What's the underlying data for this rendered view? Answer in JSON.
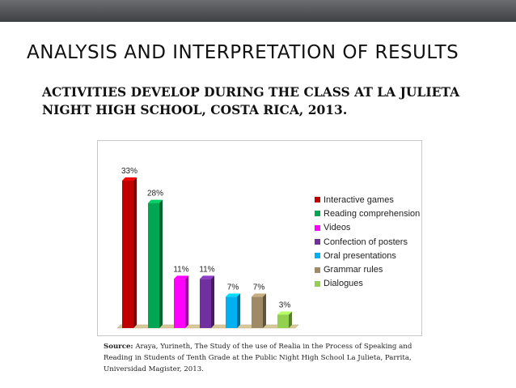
{
  "slide": {
    "title": "ANALYSIS AND INTERPRETATION OF RESULTS",
    "subtitle": "ACTIVITIES DEVELOP DURING THE CLASS AT LA JULIETA NIGHT HIGH SCHOOL, COSTA RICA, 2013.",
    "source_label": "Source:",
    "source_text": " Araya, Yurineth, The Study of the use of Realia in the Process of Speaking and Reading in Students of Tenth Grade at the Public Night High School La Julieta, Parrita, Universidad Magister, 2013."
  },
  "chart_data": {
    "type": "bar",
    "style": "3d-columns",
    "categories": [
      "Interactive games",
      "Reading comprehension",
      "Videos",
      "Confection of posters",
      "Oral presentations",
      "Grammar rules",
      "Dialogues"
    ],
    "values": [
      33,
      28,
      11,
      11,
      7,
      7,
      3
    ],
    "value_labels": [
      "33%",
      "28%",
      "11%",
      "11%",
      "7%",
      "7%",
      "3%"
    ],
    "colors": [
      "#c00000",
      "#00a651",
      "#ff00ff",
      "#7030a0",
      "#00b0f0",
      "#a08a66",
      "#92d050"
    ],
    "ylim": [
      0,
      35
    ],
    "grid": false,
    "legend_position": "right"
  }
}
